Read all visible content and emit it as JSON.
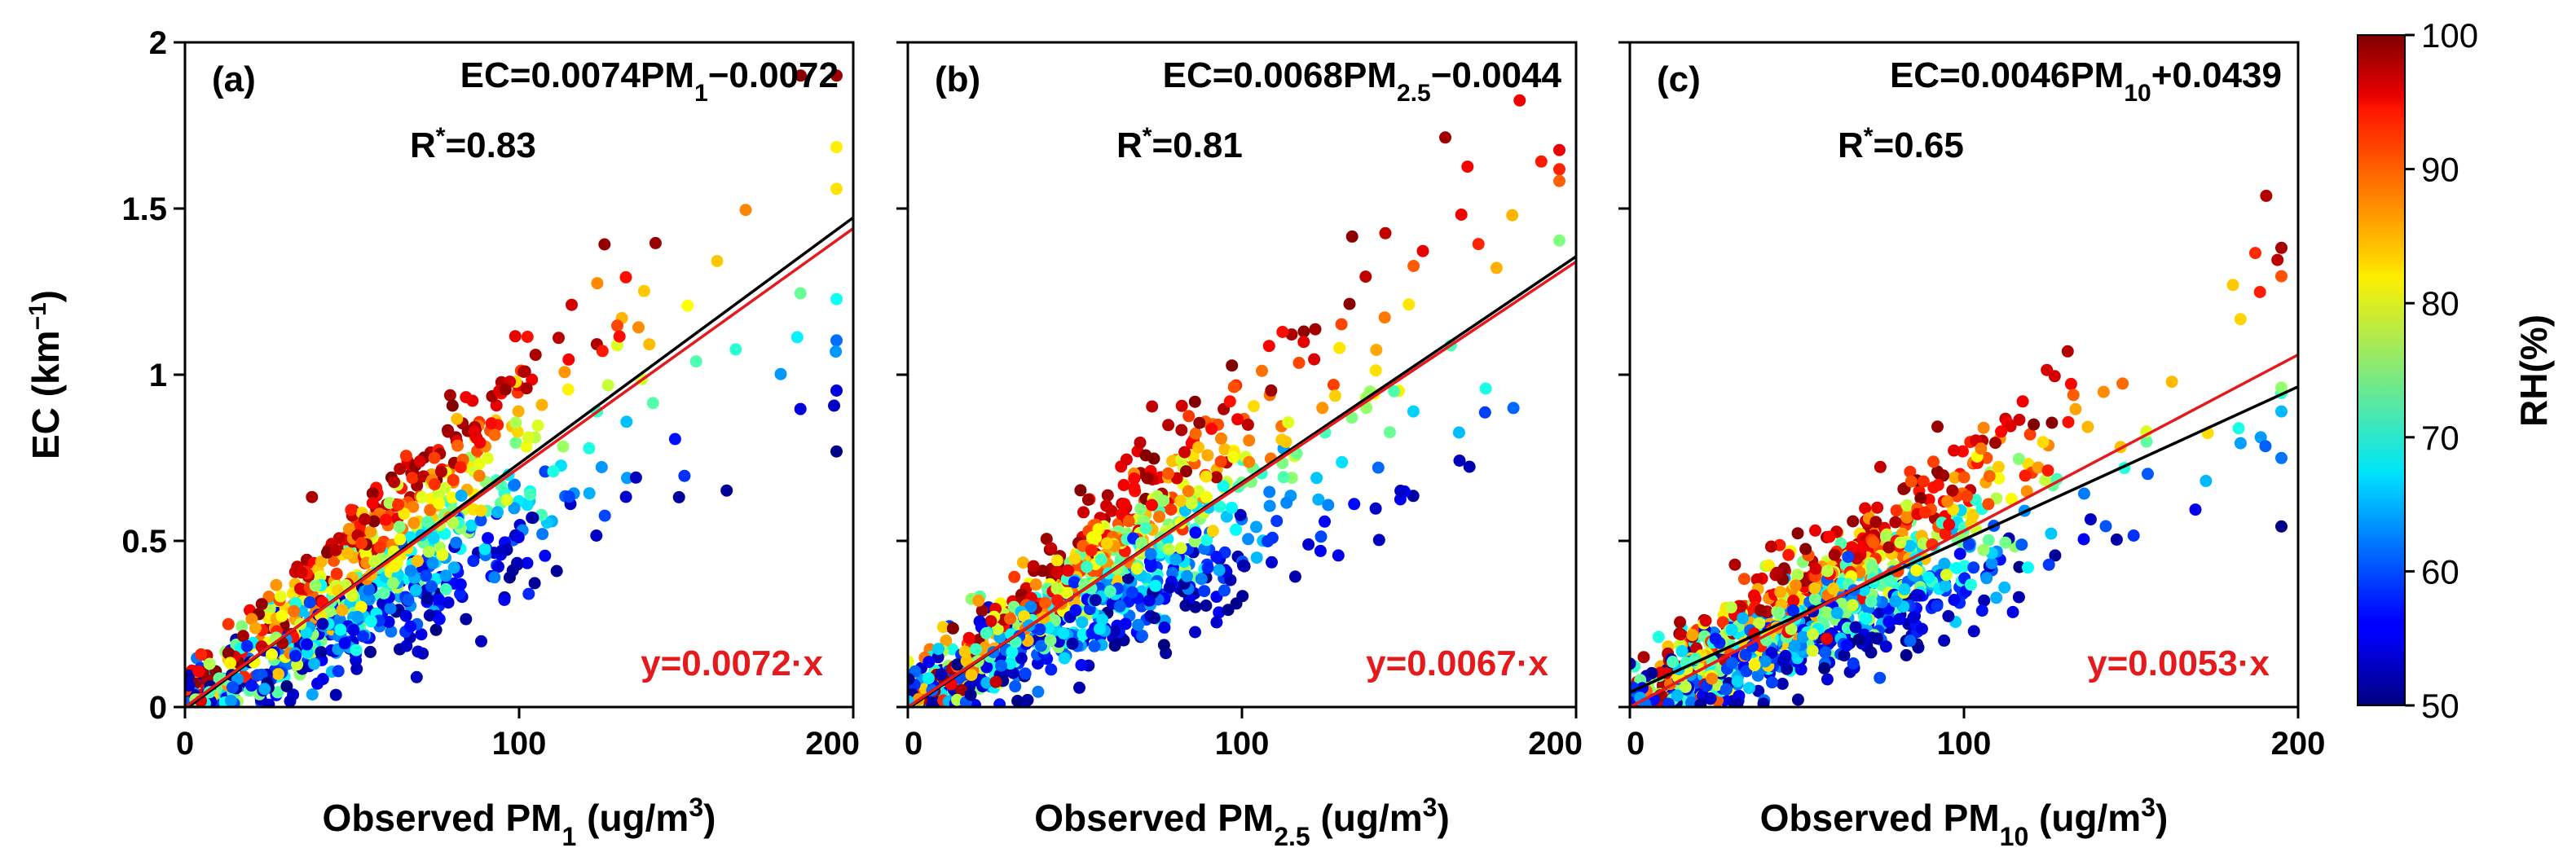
{
  "chart_data": [
    {
      "type": "scatter",
      "panel_label": "(a)",
      "equation": {
        "lhs": "EC=0.0074PM",
        "sub": "1",
        "rhs": "−0.0072"
      },
      "r_label": "R",
      "r_sup": "*",
      "r_value": "=0.83",
      "fit_label": "y=0.0072·x",
      "ylabel": {
        "main": "EC (km",
        "sup": "−1",
        "end": ")"
      },
      "xlabel": {
        "main": "Observed PM",
        "sub": "1",
        "end": " (ug/m",
        "sup": "3",
        "end2": ")"
      },
      "xlim": [
        0,
        200
      ],
      "ylim": [
        0,
        2
      ],
      "xticks": [
        "0",
        "100",
        "200"
      ],
      "yticks": [
        "0",
        "0.5",
        "1",
        "1.5",
        "2"
      ],
      "lines": [
        {
          "name": "regression",
          "color": "#000000",
          "x": [
            0,
            200
          ],
          "y": [
            -0.0072,
            1.4728
          ]
        },
        {
          "name": "through-origin",
          "color": "#e41a1c",
          "x": [
            0,
            200
          ],
          "y": [
            0,
            1.44
          ]
        }
      ],
      "scatter_seed": 11,
      "scatter_count": 900,
      "slope": 0.0072
    },
    {
      "type": "scatter",
      "panel_label": "(b)",
      "equation": {
        "lhs": "EC=0.0068PM",
        "sub": "2.5",
        "rhs": "−0.0044"
      },
      "r_label": "R",
      "r_sup": "*",
      "r_value": "=0.81",
      "fit_label": "y=0.0067·x",
      "xlabel": {
        "main": "Observed PM",
        "sub": "2.5",
        "end": " (ug/m",
        "sup": "3",
        "end2": ")"
      },
      "xlim": [
        0,
        200
      ],
      "ylim": [
        0,
        2
      ],
      "xticks": [
        "0",
        "100",
        "200"
      ],
      "lines": [
        {
          "name": "regression",
          "color": "#000000",
          "x": [
            0,
            200
          ],
          "y": [
            -0.0044,
            1.3556
          ]
        },
        {
          "name": "through-origin",
          "color": "#e41a1c",
          "x": [
            0,
            200
          ],
          "y": [
            0,
            1.34
          ]
        }
      ],
      "scatter_seed": 23,
      "scatter_count": 950,
      "slope": 0.0067
    },
    {
      "type": "scatter",
      "panel_label": "(c)",
      "equation": {
        "lhs": "EC=0.0046PM",
        "sub": "10",
        "rhs": "+0.0439"
      },
      "r_label": "R",
      "r_sup": "*",
      "r_value": "=0.65",
      "fit_label": "y=0.0053·x",
      "xlabel": {
        "main": "Observed PM",
        "sub": "10",
        "end": " (ug/m",
        "sup": "3",
        "end2": ")"
      },
      "xlim": [
        0,
        200
      ],
      "ylim": [
        0,
        2
      ],
      "xticks": [
        "0",
        "100",
        "200"
      ],
      "lines": [
        {
          "name": "regression",
          "color": "#000000",
          "x": [
            0,
            200
          ],
          "y": [
            0.0439,
            0.9639
          ]
        },
        {
          "name": "through-origin",
          "color": "#e41a1c",
          "x": [
            0,
            200
          ],
          "y": [
            0,
            1.06
          ]
        }
      ],
      "scatter_seed": 37,
      "scatter_count": 1100,
      "slope": 0.0053
    }
  ],
  "colorbar": {
    "label": "RH(%)",
    "range": [
      50,
      100
    ],
    "ticks": [
      "50",
      "60",
      "70",
      "80",
      "90",
      "100"
    ],
    "colormap": "jet"
  }
}
